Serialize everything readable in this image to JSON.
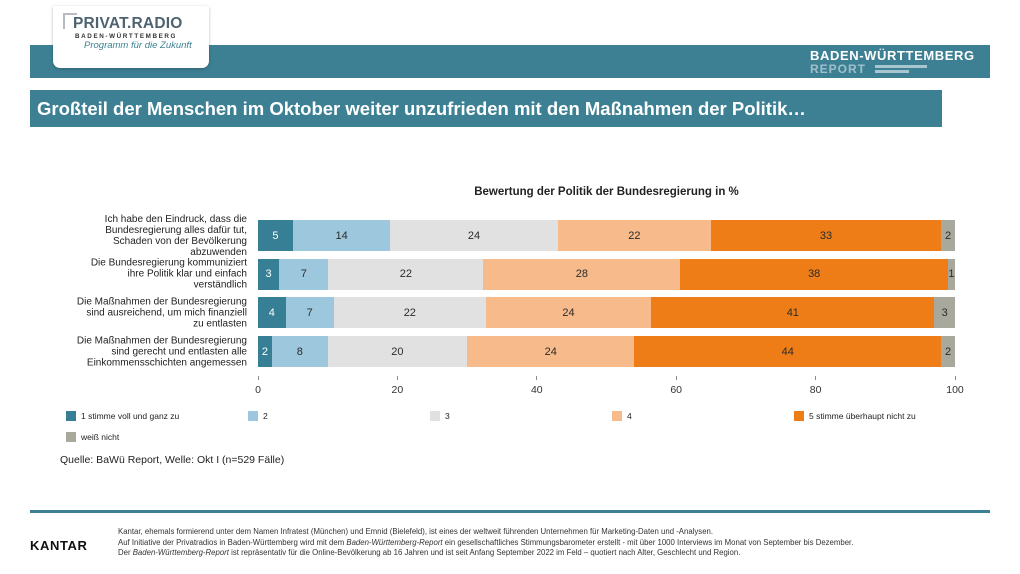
{
  "header": {
    "logo": {
      "name": "PRIVAT.RADIO",
      "region": "BADEN-WÜRTTEMBERG",
      "slogan": "Programm für die Zukunft"
    },
    "report": {
      "line1": "BADEN-WÜRTTEMBERG",
      "line2": "REPORT"
    }
  },
  "title": "Großteil der Menschen im Oktober weiter unzufrieden mit den Maßnahmen der Politik…",
  "chart_data": {
    "type": "bar",
    "orientation": "horizontal",
    "stacked": true,
    "title": "Bewertung der Politik der Bundesregierung in %",
    "xlim": [
      0,
      100
    ],
    "xticks": [
      0,
      20,
      40,
      60,
      80,
      100
    ],
    "grid": false,
    "legend": "bottom",
    "categories": [
      "Ich habe den Eindruck, dass die\nBundesregierung alles dafür tut,\nSchaden von der Bevölkerung\nabzuwenden",
      "Die Bundesregierung kommuniziert\nihre Politik klar und einfach\nverständlich",
      "Die Maßnahmen der Bundesregierung\nsind ausreichend, um mich finanziell\nzu entlasten",
      "Die Maßnahmen der Bundesregierung\nsind gerecht und entlasten alle\nEinkommensschichten angemessen"
    ],
    "series": [
      {
        "name": "1 stimme voll und ganz zu",
        "color": "#377f94",
        "values": [
          5,
          3,
          4,
          2
        ]
      },
      {
        "name": "2",
        "color": "#9cc7dc",
        "values": [
          14,
          7,
          7,
          8
        ]
      },
      {
        "name": "3",
        "color": "#e1e1e1",
        "values": [
          24,
          22,
          22,
          20
        ]
      },
      {
        "name": "4",
        "color": "#f6ba8b",
        "values": [
          22,
          28,
          24,
          24
        ]
      },
      {
        "name": "5 stimme überhaupt nicht zu",
        "color": "#ee7d18",
        "values": [
          33,
          38,
          41,
          44
        ]
      },
      {
        "name": "weiß nicht",
        "color": "#a8a89d",
        "values": [
          2,
          1,
          3,
          2
        ]
      }
    ]
  },
  "source": "Quelle: BaWü Report, Welle: Okt I (n=529 Fälle)",
  "footer": {
    "brand": "KANTAR",
    "line1": "Kantar, ehemals formierend unter dem Namen Infratest (München) und Emnid (Bielefeld), ist eines der weltweit führenden Unternehmen für Marketing-Daten und -Analysen.",
    "line2": [
      "Auf Initiative der Privatradios in Baden-Württemberg wird mit dem ",
      "Baden-Württemberg-Report",
      " ein gesellschaftliches Stimmungsbarometer erstellt - mit über 1000 Interviews im Monat von September bis Dezember."
    ],
    "line3": [
      "Der ",
      "Baden-Württemberg-Report",
      " ist repräsentativ für die Online-Bevölkerung ab 16 Jahren und ist seit Anfang September 2022 im Feld – quotiert nach Alter, Geschlecht und Region."
    ]
  },
  "colors": {
    "brand_teal": "#3d8094",
    "text": "#222222"
  }
}
